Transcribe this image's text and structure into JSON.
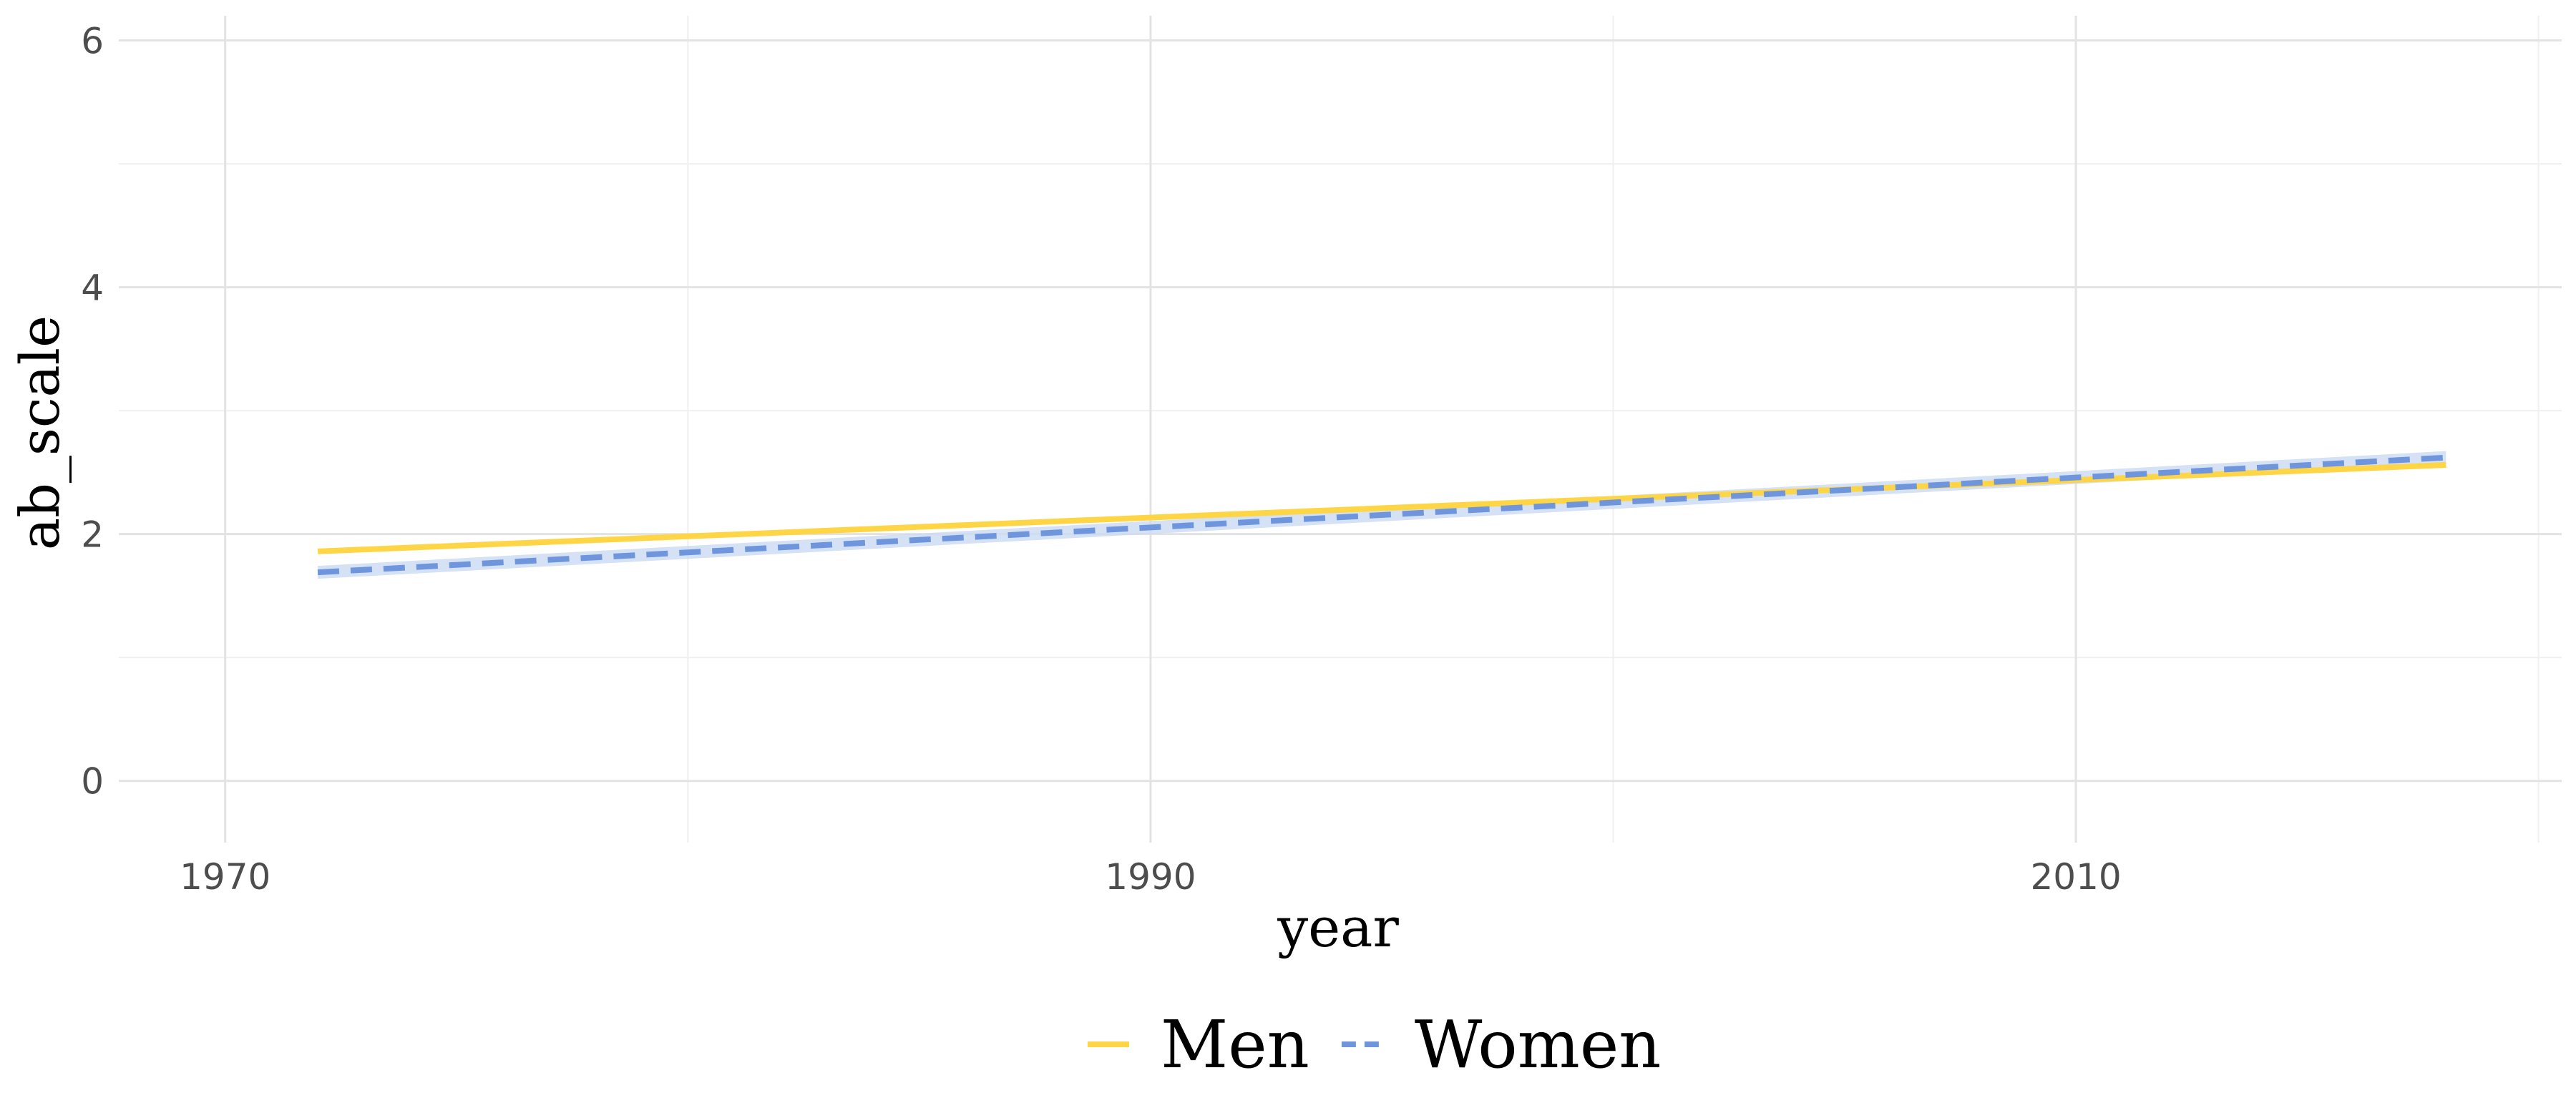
{
  "chart_data": {
    "type": "line",
    "title": "",
    "xlabel": "year",
    "ylabel": "ab_scale",
    "xlim": [
      1967.7,
      2020.5
    ],
    "ylim": [
      -0.5,
      6.2
    ],
    "x_ticks": [
      "1970",
      "1990",
      "2010"
    ],
    "y_ticks": [
      "0",
      "2",
      "4",
      "6"
    ],
    "grid": true,
    "legend_position": "bottom",
    "series": [
      {
        "name": "Men",
        "color": "#FDD545",
        "line_style": "solid",
        "x": [
          1972,
          2018
        ],
        "y": [
          1.86,
          2.56
        ]
      },
      {
        "name": "Women",
        "color": "#6F96DD",
        "line_style": "dashed",
        "x": [
          1972,
          2018
        ],
        "y": [
          1.69,
          2.62
        ],
        "band_color": "#CBD9F2"
      }
    ]
  }
}
